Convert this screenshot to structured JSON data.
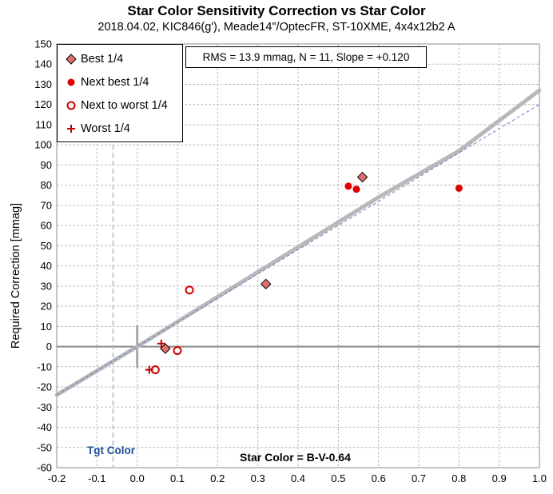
{
  "chart_data": {
    "type": "scatter",
    "title": "Star Color Sensitivity Correction vs Star Color",
    "subtitle": "2018.04.02, KIC846(g'), Meade14\"/OptecFR, ST-10XME, 4x4x12b2 A",
    "ylabel": "Required Correction [mmag]",
    "xvar_label": "Star Color = B-V-0.64",
    "stats_text": "RMS = 13.9 mmag, N = 11, Slope = +0.120",
    "target_label": "Tgt Color",
    "target_x": -0.06,
    "xlim": [
      -0.2,
      1.0
    ],
    "ylim": [
      -60,
      150
    ],
    "x_ticks": [
      "-0.2",
      "-0.1",
      "0.0",
      "0.1",
      "0.2",
      "0.3",
      "0.4",
      "0.5",
      "0.6",
      "0.7",
      "0.8",
      "0.9",
      "1.0"
    ],
    "y_ticks": [
      "150",
      "140",
      "130",
      "120",
      "110",
      "100",
      "90",
      "80",
      "70",
      "60",
      "50",
      "40",
      "30",
      "20",
      "10",
      "0",
      "-10",
      "-20",
      "-30",
      "-40",
      "-50",
      "-60"
    ],
    "grid": true,
    "legend_position": "top-left",
    "series": [
      {
        "name": "Best 1/4",
        "marker": "diamond",
        "color": "#e07070",
        "points": [
          [
            0.56,
            84
          ],
          [
            0.32,
            31
          ],
          [
            0.07,
            -1
          ]
        ]
      },
      {
        "name": "Next best 1/4",
        "marker": "dot",
        "color": "#e00000",
        "points": [
          [
            0.525,
            79.5
          ],
          [
            0.545,
            78
          ],
          [
            0.8,
            78.5
          ]
        ]
      },
      {
        "name": "Next to worst 1/4",
        "marker": "open-circle",
        "color": "#d00000",
        "points": [
          [
            0.13,
            28
          ],
          [
            0.1,
            -2
          ],
          [
            0.045,
            -11.5
          ]
        ]
      },
      {
        "name": "Worst 1/4",
        "marker": "plus",
        "color": "#c00000",
        "points": [
          [
            0.06,
            1.5
          ],
          [
            0.03,
            -11.5
          ]
        ]
      }
    ],
    "fit_curve": {
      "color": "#b8b8b8",
      "points": [
        [
          -0.2,
          -24
        ],
        [
          0.0,
          0
        ],
        [
          0.3,
          37
        ],
        [
          0.6,
          74
        ],
        [
          0.8,
          97
        ],
        [
          1.0,
          127
        ]
      ]
    },
    "linear_fit": {
      "color": "#6f7fd0",
      "slope_mmag_per_mag": 120,
      "points": [
        [
          -0.2,
          -24
        ],
        [
          1.0,
          120
        ]
      ]
    }
  }
}
